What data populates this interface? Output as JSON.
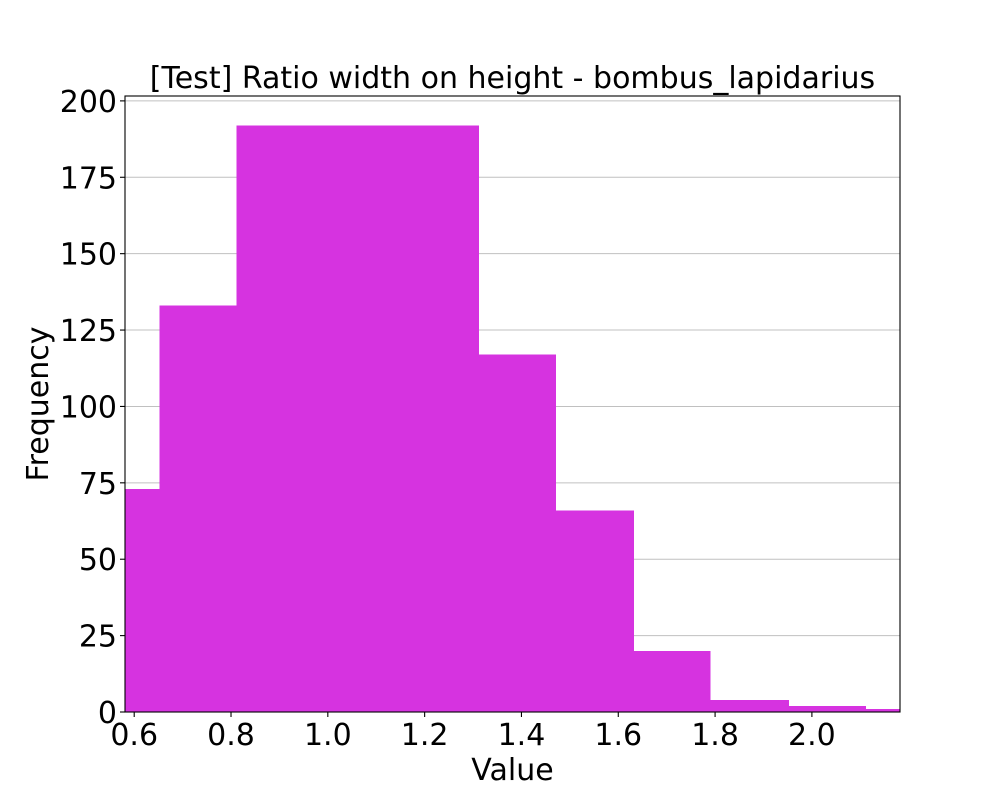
{
  "chart_data": {
    "type": "bar",
    "title": "[Test] Ratio width on height - bombus_lapidarius",
    "xlabel": "Value",
    "ylabel": "Frequency",
    "bin_edges": [
      0.581,
      0.652,
      0.811,
      1.312,
      1.471,
      1.632,
      1.791,
      1.953,
      2.112,
      2.182
    ],
    "values": [
      73,
      133,
      192,
      117,
      66,
      20,
      4,
      2,
      1
    ],
    "xlim": [
      0.581,
      2.182
    ],
    "ylim": [
      0,
      201.6
    ],
    "xticks": [
      "0.6",
      "0.8",
      "1.0",
      "1.2",
      "1.4",
      "1.6",
      "1.8",
      "2.0"
    ],
    "yticks": [
      "0",
      "25",
      "50",
      "75",
      "100",
      "125",
      "150",
      "175",
      "200"
    ],
    "grid": true,
    "bar_color": "#d633e0",
    "grid_color": "#c0c0c0",
    "axis_color": "#000000"
  }
}
